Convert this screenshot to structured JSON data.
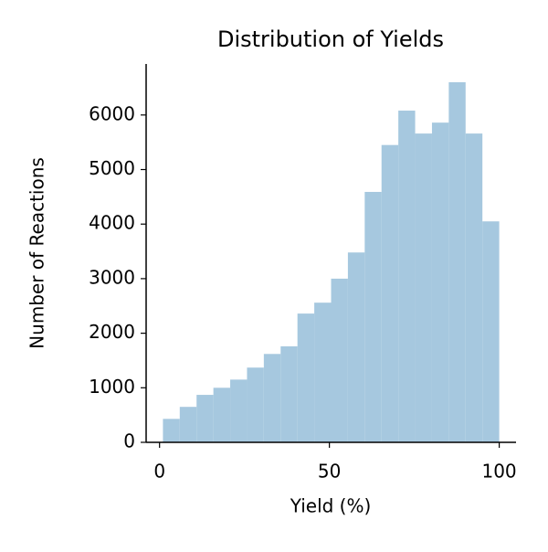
{
  "chart_data": {
    "type": "histogram",
    "title": "Distribution of Yields",
    "x_label": "Yield (%)",
    "y_label": "Number of Reactions",
    "bins": [
      1,
      5.95,
      10.9,
      15.85,
      20.8,
      25.75,
      30.7,
      35.65,
      40.6,
      45.55,
      50.5,
      55.45,
      60.4,
      65.35,
      70.3,
      75.25,
      80.2,
      85.15,
      90.1,
      95.05,
      100
    ],
    "values": [
      430,
      650,
      870,
      1000,
      1150,
      1370,
      1620,
      1760,
      2360,
      2560,
      3000,
      3480,
      4590,
      5450,
      6080,
      5660,
      5860,
      6600,
      5660,
      4050
    ],
    "color": "#a6c8df",
    "xlim": [
      -3.95,
      104.95
    ],
    "xticks": [
      0,
      50,
      100
    ],
    "ylim": [
      0,
      6935
    ],
    "yticks": [
      0,
      1000,
      2000,
      3000,
      4000,
      5000,
      6000
    ]
  }
}
